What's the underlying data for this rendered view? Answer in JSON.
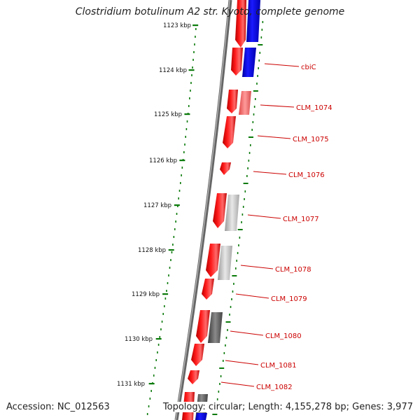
{
  "title": "Clostridium botulinum A2 str. Kyoto, complete genome",
  "accession_text": "Accession: NC_012563",
  "summary_text": "Topology: circular; Length: 4,155,278 bp; Genes: 3,977",
  "colors": {
    "forward_gene": "#ff0000",
    "reverse_gene": "#0000ff",
    "backbone": "#888888",
    "ruler_dots": "#0a7a0a",
    "label_line": "#cc0000",
    "label_text": "#cc0000"
  },
  "ruler_labels": [
    "1123 kbp",
    "1124 kbp",
    "1125 kbp",
    "1126 kbp",
    "1127 kbp",
    "1128 kbp",
    "1129 kbp",
    "1130 kbp",
    "1131 kbp"
  ],
  "gene_labels": [
    "cbiC",
    "CLM_1074",
    "CLM_1075",
    "CLM_1076",
    "CLM_1077",
    "CLM_1078",
    "CLM_1079",
    "CLM_1080",
    "CLM_1081",
    "CLM_1082"
  ]
}
